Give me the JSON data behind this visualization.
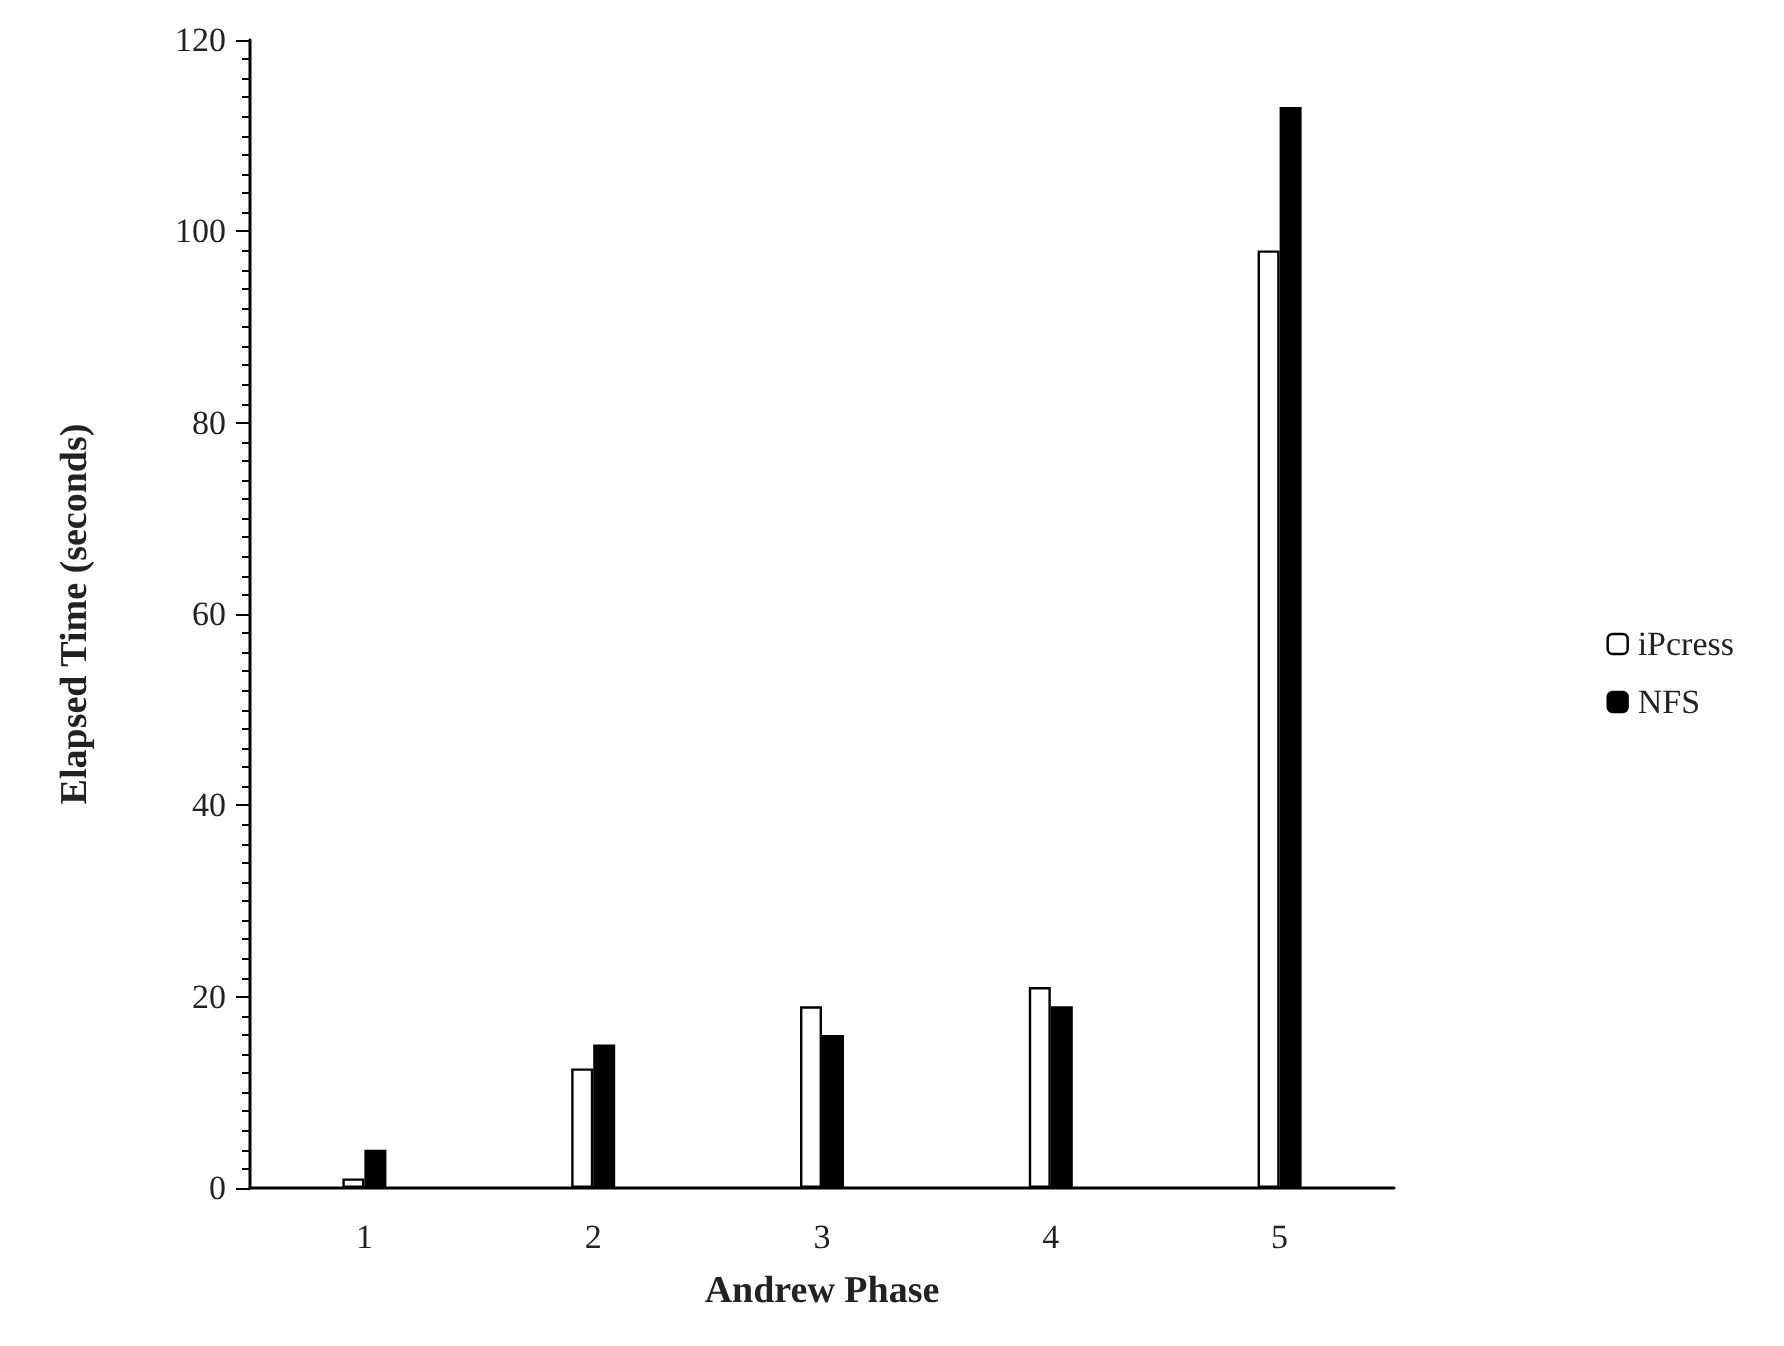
{
  "chart_data": {
    "type": "bar",
    "xlabel": "Andrew Phase",
    "ylabel": "Elapsed Time (seconds)",
    "categories": [
      "1",
      "2",
      "3",
      "4",
      "5"
    ],
    "series": [
      {
        "name": "iPcress",
        "color": "#ffffff",
        "values": [
          1,
          12.5,
          19,
          21,
          98
        ]
      },
      {
        "name": "NFS",
        "color": "#000000",
        "values": [
          4,
          15,
          16,
          19,
          113
        ]
      }
    ],
    "ylim": [
      0,
      120
    ],
    "yticks": [
      0,
      20,
      40,
      60,
      80,
      100,
      120
    ],
    "grid": false,
    "legend": "right"
  }
}
